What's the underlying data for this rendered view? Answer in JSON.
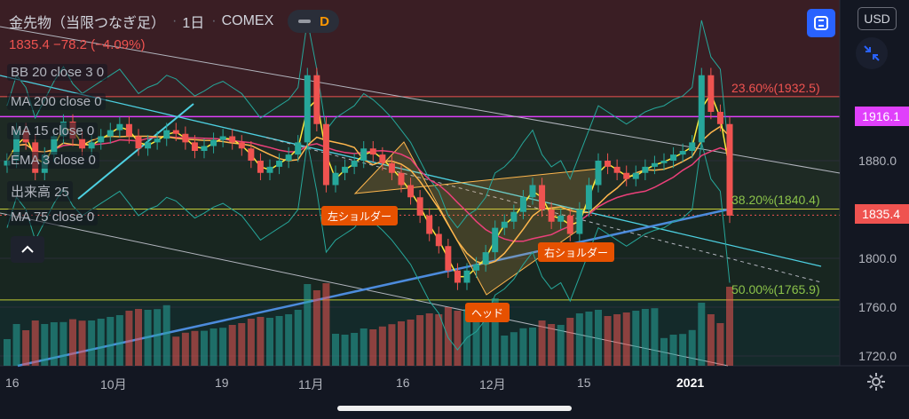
{
  "header": {
    "symbol": "金先物（当限つなぎ足）",
    "interval": "1日",
    "exchange": "COMEX",
    "toggle_letter": "D",
    "change": "1835.4 −78.2 (−4.09%)"
  },
  "indicators": [
    "BB 20 close 3 0",
    "MA 200 close 0",
    "MA 15 close 0",
    "EMA 3 close 0",
    "出来高 25",
    "MA 75 close 0"
  ],
  "currency_button": "USD",
  "price_labels": {
    "highlight": "1916.1",
    "current": "1835.4"
  },
  "fib_levels": [
    {
      "text": "23.60%(1932.5)",
      "color": "#ef5350"
    },
    {
      "text": "38.20%(1840.4)",
      "color": "#8bc34a"
    },
    {
      "text": "50.00%(1765.9)",
      "color": "#8bc34a"
    }
  ],
  "pattern_labels": {
    "left_shoulder": "左ショルダー",
    "head": "ヘッド",
    "right_shoulder": "右ショルダー"
  },
  "colors": {
    "up": "#26a69a",
    "down": "#ef5350",
    "highlight_label": "#e040fb",
    "current_label": "#ef5350",
    "accent_blue": "#2962ff",
    "pattern_label": "#e65100"
  },
  "icons": {
    "fullscreen": "fullscreen-icon",
    "shrink": "shrink-arrows-icon",
    "collapse": "chevron-up-icon",
    "settings": "gear-icon"
  },
  "chart_data": {
    "type": "candlestick",
    "y_axis": {
      "ticks": [
        1720.0,
        1760.0,
        1800.0,
        1840.0,
        1880.0
      ],
      "tick_labels": [
        "1720.0",
        "1760.0",
        "1800.0",
        "1840.0",
        "1880.0"
      ],
      "range": [
        1710,
        1990
      ]
    },
    "x_axis": {
      "ticks": [
        "16",
        "10月",
        "19",
        "11月",
        "16",
        "12月",
        "15",
        "2021"
      ]
    },
    "last_price": 1835.4,
    "highlight_price": 1916.1,
    "fibonacci": [
      {
        "ratio": "23.60%",
        "price": 1932.5
      },
      {
        "ratio": "38.20%",
        "price": 1840.4
      },
      {
        "ratio": "50.00%",
        "price": 1765.9
      }
    ],
    "pattern": "head and shoulders",
    "close_series": [
      1880,
      1905,
      1895,
      1870,
      1885,
      1900,
      1912,
      1898,
      1890,
      1895,
      1900,
      1905,
      1910,
      1900,
      1890,
      1895,
      1898,
      1905,
      1902,
      1895,
      1888,
      1892,
      1897,
      1900,
      1895,
      1890,
      1880,
      1870,
      1875,
      1880,
      1885,
      1895,
      1950,
      1910,
      1860,
      1870,
      1875,
      1880,
      1890,
      1885,
      1878,
      1870,
      1860,
      1850,
      1835,
      1820,
      1810,
      1790,
      1780,
      1790,
      1795,
      1805,
      1825,
      1830,
      1838,
      1850,
      1860,
      1840,
      1830,
      1835,
      1820,
      1840,
      1860,
      1880,
      1875,
      1870,
      1865,
      1870,
      1875,
      1878,
      1880,
      1885,
      1888,
      1895,
      1950,
      1920,
      1910,
      1835
    ]
  }
}
